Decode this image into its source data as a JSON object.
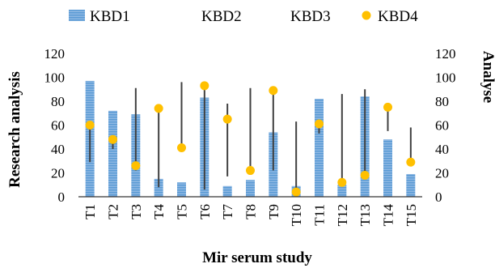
{
  "chart_data": {
    "type": "bar",
    "xlabel": "Mir serum study",
    "ylabel_left": "Research analysis",
    "ylabel_right": "Analyse",
    "ylim": [
      0,
      120
    ],
    "y_ticks": [
      0,
      20,
      40,
      60,
      80,
      100,
      120
    ],
    "categories": [
      "T1",
      "T2",
      "T3",
      "T4",
      "T5",
      "T6",
      "T7",
      "T8",
      "T9",
      "T10",
      "T11",
      "T12",
      "T13",
      "T14",
      "T15"
    ],
    "series": [
      {
        "name": "KBD1",
        "kind": "bar",
        "color": "#5b9bd5",
        "values": [
          97,
          72,
          69,
          15,
          12,
          83,
          9,
          14,
          54,
          9,
          82,
          10,
          84,
          48,
          19
        ]
      },
      {
        "name": "KBD2",
        "kind": "range-high",
        "color": "#404040",
        "values": [
          60,
          47,
          91,
          73,
          96,
          93,
          78,
          91,
          90,
          63,
          61,
          86,
          90,
          74,
          58
        ]
      },
      {
        "name": "KBD3",
        "kind": "range-low",
        "color": "#404040",
        "values": [
          29,
          40,
          22,
          8,
          41,
          6,
          17,
          20,
          22,
          3,
          53,
          10,
          17,
          55,
          28
        ]
      },
      {
        "name": "KBD4",
        "kind": "marker",
        "color": "#ffc000",
        "values": [
          60,
          48,
          26,
          74,
          41,
          93,
          65,
          22,
          89,
          4,
          61,
          12,
          18,
          75,
          29
        ]
      }
    ],
    "legend_position": "top",
    "grid": false
  }
}
